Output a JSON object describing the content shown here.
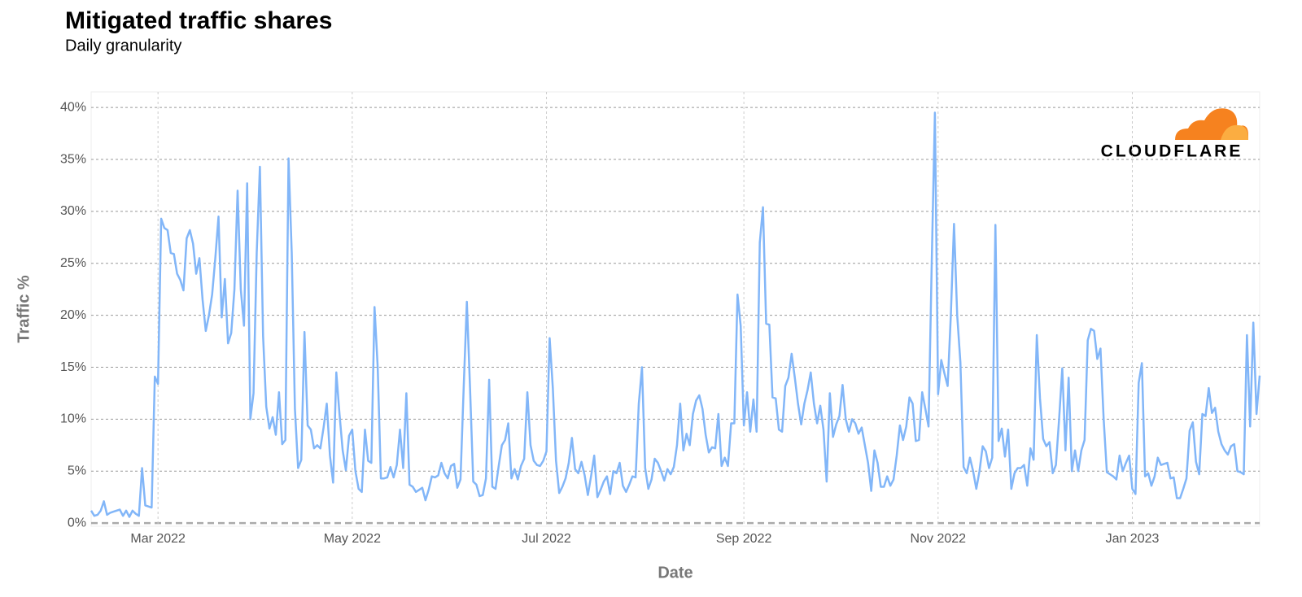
{
  "chart_data": {
    "type": "line",
    "title": "Mitigated traffic shares",
    "subtitle": "Daily granularity",
    "x_label": "Date",
    "y_label": "Traffic %",
    "logo": "CLOUDFLARE",
    "color": "#82b6f8",
    "grid": true,
    "xlim": [
      "2022-02-08",
      "2023-02-10"
    ],
    "xticks": [
      {
        "value": "2022-03-01",
        "label": "Mar 2022"
      },
      {
        "value": "2022-05-01",
        "label": "May 2022"
      },
      {
        "value": "2022-07-01",
        "label": "Jul 2022"
      },
      {
        "value": "2022-09-01",
        "label": "Sep 2022"
      },
      {
        "value": "2022-11-01",
        "label": "Nov 2022"
      },
      {
        "value": "2023-01-01",
        "label": "Jan 2023"
      }
    ],
    "ylim": [
      -0.3,
      41.5
    ],
    "yticks": [
      {
        "value": 0,
        "label": "0%"
      },
      {
        "value": 5,
        "label": "5%"
      },
      {
        "value": 10,
        "label": "10%"
      },
      {
        "value": 15,
        "label": "15%"
      },
      {
        "value": 20,
        "label": "20%"
      },
      {
        "value": 25,
        "label": "25%"
      },
      {
        "value": 30,
        "label": "30%"
      },
      {
        "value": 35,
        "label": "35%"
      },
      {
        "value": 40,
        "label": "40%"
      }
    ],
    "x": [
      "2022-02-08",
      "2022-02-09",
      "2022-02-10",
      "2022-02-11",
      "2022-02-12",
      "2022-02-13",
      "2022-02-14",
      "2022-02-15",
      "2022-02-16",
      "2022-02-17",
      "2022-02-18",
      "2022-02-19",
      "2022-02-20",
      "2022-02-21",
      "2022-02-22",
      "2022-02-23",
      "2022-02-24",
      "2022-02-25",
      "2022-02-26",
      "2022-02-27",
      "2022-02-28",
      "2022-03-01",
      "2022-03-02",
      "2022-03-03",
      "2022-03-04",
      "2022-03-05",
      "2022-03-06",
      "2022-03-07",
      "2022-03-08",
      "2022-03-09",
      "2022-03-10",
      "2022-03-11",
      "2022-03-12",
      "2022-03-13",
      "2022-03-14",
      "2022-03-15",
      "2022-03-16",
      "2022-03-17",
      "2022-03-18",
      "2022-03-19",
      "2022-03-20",
      "2022-03-21",
      "2022-03-22",
      "2022-03-23",
      "2022-03-24",
      "2022-03-25",
      "2022-03-26",
      "2022-03-27",
      "2022-03-28",
      "2022-03-29",
      "2022-03-30",
      "2022-03-31",
      "2022-04-01",
      "2022-04-02",
      "2022-04-03",
      "2022-04-04",
      "2022-04-05",
      "2022-04-06",
      "2022-04-07",
      "2022-04-08",
      "2022-04-09",
      "2022-04-10",
      "2022-04-11",
      "2022-04-12",
      "2022-04-13",
      "2022-04-14",
      "2022-04-15",
      "2022-04-16",
      "2022-04-17",
      "2022-04-18",
      "2022-04-19",
      "2022-04-20",
      "2022-04-21",
      "2022-04-22",
      "2022-04-23",
      "2022-04-24",
      "2022-04-25",
      "2022-04-26",
      "2022-04-27",
      "2022-04-28",
      "2022-04-29",
      "2022-04-30",
      "2022-05-01",
      "2022-05-02",
      "2022-05-03",
      "2022-05-04",
      "2022-05-05",
      "2022-05-06",
      "2022-05-07",
      "2022-05-08",
      "2022-05-09",
      "2022-05-10",
      "2022-05-11",
      "2022-05-12",
      "2022-05-13",
      "2022-05-14",
      "2022-05-15",
      "2022-05-16",
      "2022-05-17",
      "2022-05-18",
      "2022-05-19",
      "2022-05-20",
      "2022-05-21",
      "2022-05-22",
      "2022-05-23",
      "2022-05-24",
      "2022-05-25",
      "2022-05-26",
      "2022-05-27",
      "2022-05-28",
      "2022-05-29",
      "2022-05-30",
      "2022-05-31",
      "2022-06-01",
      "2022-06-02",
      "2022-06-03",
      "2022-06-04",
      "2022-06-05",
      "2022-06-06",
      "2022-06-07",
      "2022-06-08",
      "2022-06-09",
      "2022-06-10",
      "2022-06-11",
      "2022-06-12",
      "2022-06-13",
      "2022-06-14",
      "2022-06-15",
      "2022-06-16",
      "2022-06-17",
      "2022-06-18",
      "2022-06-19",
      "2022-06-20",
      "2022-06-21",
      "2022-06-22",
      "2022-06-23",
      "2022-06-24",
      "2022-06-25",
      "2022-06-26",
      "2022-06-27",
      "2022-06-28",
      "2022-06-29",
      "2022-06-30",
      "2022-07-01",
      "2022-07-02",
      "2022-07-03",
      "2022-07-04",
      "2022-07-05",
      "2022-07-06",
      "2022-07-07",
      "2022-07-08",
      "2022-07-09",
      "2022-07-10",
      "2022-07-11",
      "2022-07-12",
      "2022-07-13",
      "2022-07-14",
      "2022-07-15",
      "2022-07-16",
      "2022-07-17",
      "2022-07-18",
      "2022-07-19",
      "2022-07-20",
      "2022-07-21",
      "2022-07-22",
      "2022-07-23",
      "2022-07-24",
      "2022-07-25",
      "2022-07-26",
      "2022-07-27",
      "2022-07-28",
      "2022-07-29",
      "2022-07-30",
      "2022-07-31",
      "2022-08-01",
      "2022-08-02",
      "2022-08-03",
      "2022-08-04",
      "2022-08-05",
      "2022-08-06",
      "2022-08-07",
      "2022-08-08",
      "2022-08-09",
      "2022-08-10",
      "2022-08-11",
      "2022-08-12",
      "2022-08-13",
      "2022-08-14",
      "2022-08-15",
      "2022-08-16",
      "2022-08-17",
      "2022-08-18",
      "2022-08-19",
      "2022-08-20",
      "2022-08-21",
      "2022-08-22",
      "2022-08-23",
      "2022-08-24",
      "2022-08-25",
      "2022-08-26",
      "2022-08-27",
      "2022-08-28",
      "2022-08-29",
      "2022-08-30",
      "2022-08-31",
      "2022-09-01",
      "2022-09-02",
      "2022-09-03",
      "2022-09-04",
      "2022-09-05",
      "2022-09-06",
      "2022-09-07",
      "2022-09-08",
      "2022-09-09",
      "2022-09-10",
      "2022-09-11",
      "2022-09-12",
      "2022-09-13",
      "2022-09-14",
      "2022-09-15",
      "2022-09-16",
      "2022-09-17",
      "2022-09-18",
      "2022-09-19",
      "2022-09-20",
      "2022-09-21",
      "2022-09-22",
      "2022-09-23",
      "2022-09-24",
      "2022-09-25",
      "2022-09-26",
      "2022-09-27",
      "2022-09-28",
      "2022-09-29",
      "2022-09-30",
      "2022-10-01",
      "2022-10-02",
      "2022-10-03",
      "2022-10-04",
      "2022-10-05",
      "2022-10-06",
      "2022-10-07",
      "2022-10-08",
      "2022-10-09",
      "2022-10-10",
      "2022-10-11",
      "2022-10-12",
      "2022-10-13",
      "2022-10-14",
      "2022-10-15",
      "2022-10-16",
      "2022-10-17",
      "2022-10-18",
      "2022-10-19",
      "2022-10-20",
      "2022-10-21",
      "2022-10-22",
      "2022-10-23",
      "2022-10-24",
      "2022-10-25",
      "2022-10-26",
      "2022-10-27",
      "2022-10-28",
      "2022-10-29",
      "2022-10-30",
      "2022-10-31",
      "2022-11-01",
      "2022-11-02",
      "2022-11-03",
      "2022-11-04",
      "2022-11-05",
      "2022-11-06",
      "2022-11-07",
      "2022-11-08",
      "2022-11-09",
      "2022-11-10",
      "2022-11-11",
      "2022-11-12",
      "2022-11-13",
      "2022-11-14",
      "2022-11-15",
      "2022-11-16",
      "2022-11-17",
      "2022-11-18",
      "2022-11-19",
      "2022-11-20",
      "2022-11-21",
      "2022-11-22",
      "2022-11-23",
      "2022-11-24",
      "2022-11-25",
      "2022-11-26",
      "2022-11-27",
      "2022-11-28",
      "2022-11-29",
      "2022-11-30",
      "2022-12-01",
      "2022-12-02",
      "2022-12-03",
      "2022-12-04",
      "2022-12-05",
      "2022-12-06",
      "2022-12-07",
      "2022-12-08",
      "2022-12-09",
      "2022-12-10",
      "2022-12-11",
      "2022-12-12",
      "2022-12-13",
      "2022-12-14",
      "2022-12-15",
      "2022-12-16",
      "2022-12-17",
      "2022-12-18",
      "2022-12-19",
      "2022-12-20",
      "2022-12-21",
      "2022-12-22",
      "2022-12-23",
      "2022-12-24",
      "2022-12-25",
      "2022-12-26",
      "2022-12-27",
      "2022-12-28",
      "2022-12-29",
      "2022-12-30",
      "2022-12-31",
      "2023-01-01",
      "2023-01-02",
      "2023-01-03",
      "2023-01-04",
      "2023-01-05",
      "2023-01-06",
      "2023-01-07",
      "2023-01-08",
      "2023-01-09",
      "2023-01-10",
      "2023-01-11",
      "2023-01-12",
      "2023-01-13",
      "2023-01-14",
      "2023-01-15",
      "2023-01-16",
      "2023-01-17",
      "2023-01-18",
      "2023-01-19",
      "2023-01-20",
      "2023-01-21",
      "2023-01-22",
      "2023-01-23",
      "2023-01-24",
      "2023-01-25",
      "2023-01-26",
      "2023-01-27",
      "2023-01-28",
      "2023-01-29",
      "2023-01-30",
      "2023-01-31",
      "2023-02-01",
      "2023-02-02",
      "2023-02-03",
      "2023-02-04",
      "2023-02-05",
      "2023-02-06",
      "2023-02-07",
      "2023-02-08",
      "2023-02-09",
      "2023-02-10"
    ],
    "values": [
      1.2,
      0.7,
      0.8,
      1.2,
      2.1,
      0.8,
      1.0,
      1.1,
      1.2,
      1.3,
      0.7,
      1.2,
      0.6,
      1.2,
      0.9,
      0.7,
      5.3,
      1.7,
      1.6,
      1.5,
      14.1,
      13.4,
      29.3,
      28.4,
      28.2,
      26.0,
      25.9,
      24.0,
      23.4,
      22.4,
      27.4,
      28.2,
      26.9,
      24.0,
      25.5,
      21.5,
      18.5,
      20.0,
      22.0,
      25.5,
      29.5,
      19.8,
      23.5,
      17.3,
      18.3,
      22.5,
      32.0,
      22.5,
      19.0,
      32.7,
      10.0,
      12.5,
      26.0,
      34.3,
      18.0,
      11.2,
      9.1,
      10.2,
      8.5,
      12.6,
      7.6,
      8.0,
      35.1,
      26.0,
      11.0,
      5.3,
      6.1,
      18.4,
      9.4,
      9.0,
      7.2,
      7.5,
      7.2,
      9.2,
      11.5,
      6.5,
      3.9,
      14.5,
      10.5,
      7.0,
      5.1,
      8.4,
      9.0,
      5.0,
      3.3,
      3.0,
      9.0,
      6.0,
      5.8,
      20.8,
      15.0,
      4.3,
      4.3,
      4.4,
      5.4,
      4.4,
      5.6,
      9.0,
      5.3,
      12.5,
      3.7,
      3.5,
      3.0,
      3.2,
      3.4,
      2.2,
      3.2,
      4.5,
      4.4,
      4.6,
      5.8,
      4.8,
      4.3,
      5.5,
      5.7,
      3.4,
      4.2,
      13.0,
      21.3,
      13.0,
      4.0,
      3.7,
      2.6,
      2.7,
      4.3,
      13.8,
      3.5,
      3.3,
      5.5,
      7.5,
      8.0,
      9.6,
      4.3,
      5.2,
      4.2,
      5.5,
      6.2,
      12.6,
      7.5,
      6.0,
      5.6,
      5.5,
      6.0,
      6.9,
      17.8,
      13.0,
      6.0,
      2.9,
      3.5,
      4.3,
      5.8,
      8.2,
      5.2,
      4.8,
      5.9,
      4.6,
      2.7,
      4.5,
      6.5,
      2.5,
      3.2,
      4.0,
      4.5,
      2.8,
      5.0,
      4.8,
      5.8,
      3.6,
      3.0,
      3.7,
      4.5,
      4.4,
      11.5,
      15.0,
      5.3,
      3.3,
      4.2,
      6.2,
      5.8,
      5.0,
      4.1,
      5.2,
      4.7,
      5.4,
      7.5,
      11.5,
      7.0,
      8.6,
      7.5,
      10.5,
      11.8,
      12.3,
      11.0,
      8.5,
      6.8,
      7.3,
      7.2,
      10.5,
      5.5,
      6.3,
      5.5,
      9.6,
      9.6,
      22.0,
      19.0,
      9.4,
      12.6,
      8.8,
      11.9,
      8.8,
      27.0,
      30.4,
      19.2,
      19.1,
      12.1,
      12.0,
      9.0,
      8.8,
      13.2,
      14.0,
      16.3,
      14.0,
      11.5,
      9.5,
      11.5,
      12.8,
      14.5,
      11.5,
      9.6,
      11.3,
      9.0,
      4.0,
      12.5,
      8.3,
      9.5,
      10.3,
      13.3,
      10.0,
      8.8,
      10.0,
      9.6,
      8.6,
      9.2,
      7.5,
      5.8,
      3.1,
      7.0,
      5.8,
      3.5,
      3.5,
      4.5,
      3.6,
      4.2,
      6.5,
      9.4,
      8.0,
      9.3,
      12.1,
      11.5,
      7.9,
      8.0,
      12.6,
      11.0,
      9.3,
      25.0,
      39.5,
      12.4,
      15.7,
      14.4,
      13.2,
      20.0,
      28.8,
      20.0,
      15.5,
      5.4,
      4.8,
      6.3,
      5.0,
      3.3,
      5.0,
      7.4,
      6.9,
      5.3,
      6.3,
      28.7,
      7.9,
      9.1,
      6.4,
      9.0,
      3.3,
      4.8,
      5.3,
      5.3,
      5.6,
      3.6,
      7.2,
      6.1,
      18.1,
      12.0,
      8.1,
      7.4,
      7.8,
      4.8,
      5.6,
      10.0,
      14.9,
      7.0,
      14.0,
      5.0,
      7.0,
      5.0,
      7.0,
      8.0,
      17.6,
      18.7,
      18.5,
      15.8,
      16.8,
      10.0,
      4.9,
      4.7,
      4.5,
      4.2,
      6.5,
      5.0,
      5.8,
      6.5,
      3.3,
      2.8,
      13.5,
      15.4,
      4.5,
      4.8,
      3.6,
      4.5,
      6.3,
      5.6,
      5.7,
      5.8,
      4.3,
      4.4,
      2.4,
      2.4,
      3.3,
      4.3,
      8.9,
      9.7,
      5.9,
      4.7,
      10.5,
      10.3,
      13.0,
      10.6,
      11.1,
      8.8,
      7.6,
      7.0,
      6.6,
      7.4,
      7.6,
      5.0,
      4.9,
      4.7,
      18.1,
      9.3,
      19.3,
      10.5,
      14.2
    ]
  }
}
